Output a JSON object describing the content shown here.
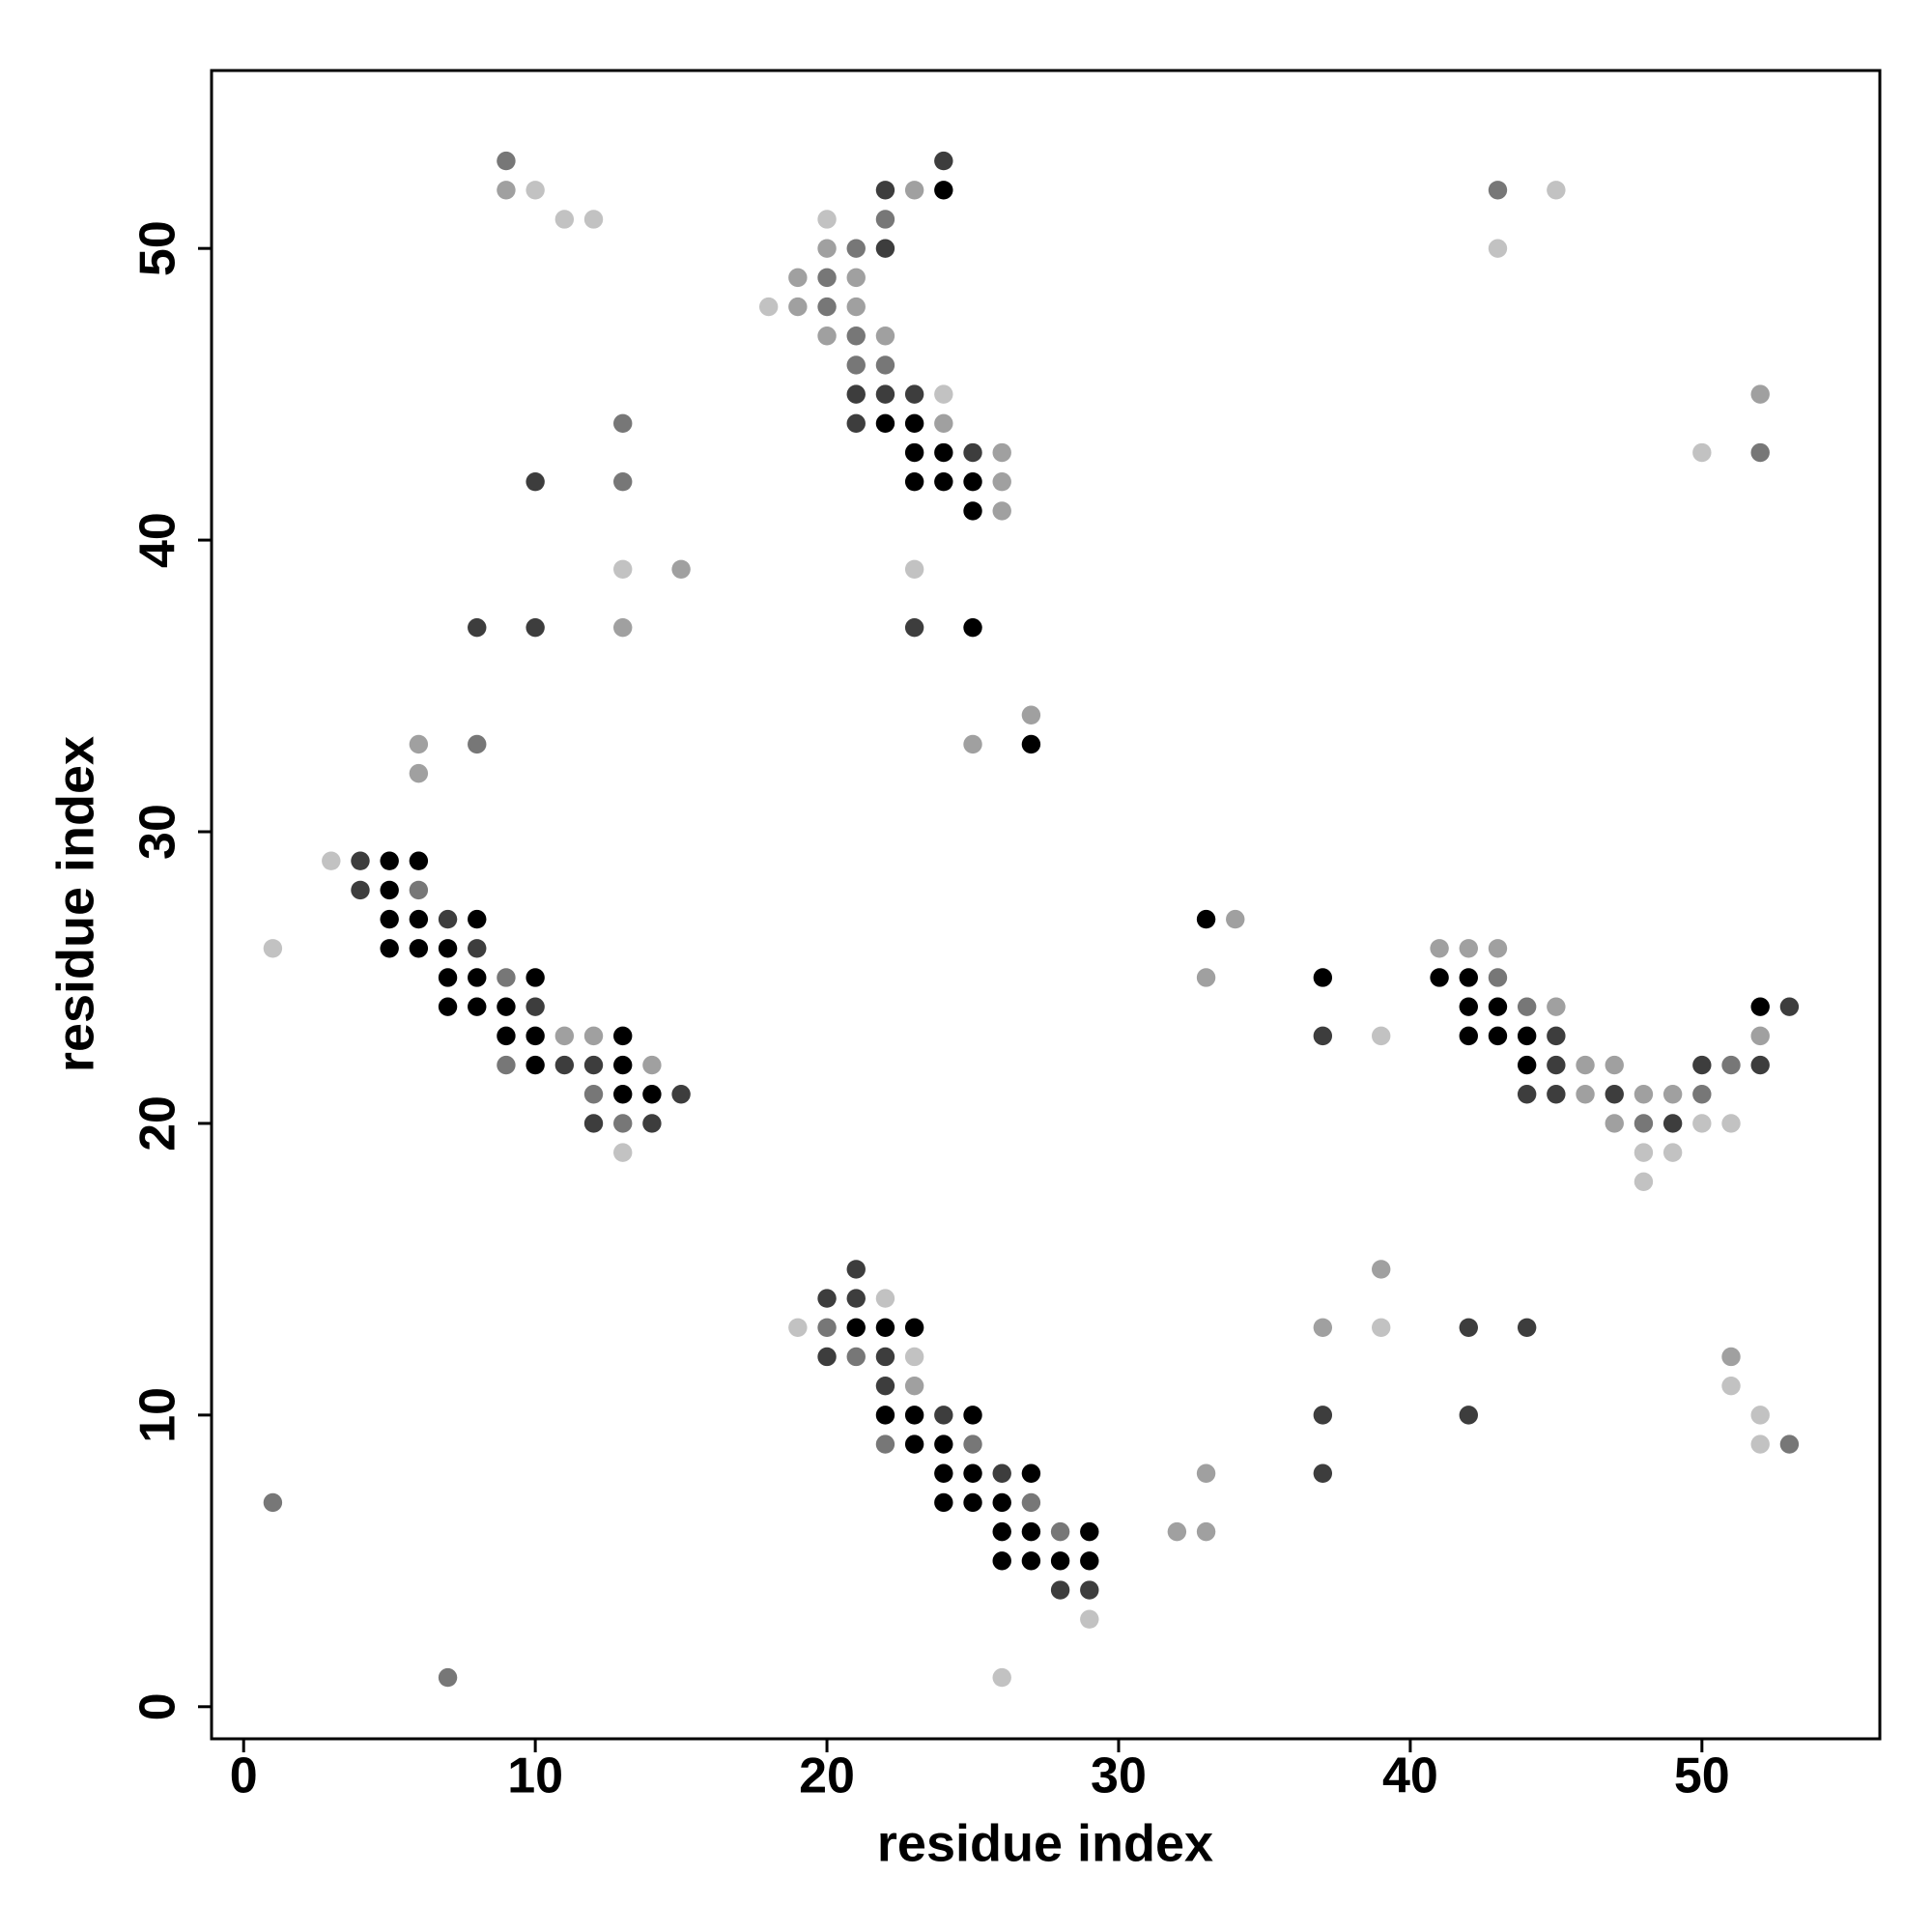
{
  "chart_data": {
    "type": "scatter",
    "xlabel": "residue index",
    "ylabel": "residue index",
    "xlim": [
      -1.1,
      56.1
    ],
    "ylim": [
      -1.1,
      56.1
    ],
    "xticks": [
      0,
      10,
      20,
      30,
      40,
      50
    ],
    "yticks": [
      0,
      10,
      20,
      30,
      40,
      50
    ],
    "grid": false,
    "series": [
      {
        "color": "#000000",
        "x": [
          24,
          22,
          23,
          23,
          24,
          23,
          24,
          25,
          25,
          25,
          27,
          5,
          6,
          5,
          5,
          6,
          8,
          33,
          5,
          6,
          7,
          7,
          8,
          10,
          37,
          41,
          42,
          7,
          8,
          9,
          42,
          43,
          52,
          9,
          10,
          13,
          42,
          43,
          44,
          10,
          13,
          44,
          13,
          14,
          21,
          22,
          23,
          22,
          23,
          25,
          23,
          24,
          24,
          25,
          27,
          24,
          25,
          26,
          26,
          27,
          29,
          26,
          27,
          28,
          29
        ],
        "values": [
          52,
          44,
          44,
          43,
          43,
          42,
          42,
          42,
          41,
          37,
          33,
          29,
          29,
          28,
          27,
          27,
          27,
          27,
          26,
          26,
          26,
          25,
          25,
          25,
          25,
          25,
          25,
          24,
          24,
          24,
          24,
          24,
          24,
          23,
          23,
          23,
          23,
          23,
          23,
          22,
          22,
          22,
          21,
          21,
          13,
          13,
          13,
          10,
          10,
          10,
          9,
          9,
          8,
          8,
          8,
          7,
          7,
          7,
          6,
          6,
          6,
          5,
          5,
          5,
          5
        ]
      },
      {
        "color": "#3d3d3d",
        "x": [
          24,
          22,
          22,
          21,
          22,
          23,
          21,
          25,
          10,
          8,
          10,
          23,
          4,
          4,
          7,
          8,
          10,
          53,
          37,
          45,
          11,
          12,
          45,
          50,
          52,
          15,
          44,
          45,
          47,
          12,
          14,
          49,
          21,
          20,
          21,
          42,
          44,
          20,
          22,
          22,
          24,
          37,
          42,
          26,
          37,
          28,
          29
        ],
        "values": [
          53,
          52,
          50,
          45,
          45,
          45,
          44,
          43,
          42,
          37,
          37,
          37,
          29,
          28,
          27,
          26,
          24,
          24,
          23,
          23,
          22,
          22,
          22,
          22,
          22,
          21,
          21,
          21,
          21,
          20,
          20,
          20,
          15,
          14,
          14,
          13,
          13,
          12,
          12,
          11,
          10,
          10,
          10,
          8,
          8,
          4,
          4
        ]
      },
      {
        "color": "#777777",
        "x": [
          9,
          43,
          22,
          21,
          20,
          20,
          21,
          21,
          22,
          13,
          52,
          13,
          8,
          6,
          9,
          43,
          44,
          9,
          51,
          12,
          50,
          13,
          48,
          20,
          21,
          22,
          25,
          53,
          1,
          27,
          28,
          7
        ],
        "values": [
          53,
          52,
          51,
          50,
          49,
          48,
          47,
          46,
          46,
          44,
          43,
          42,
          33,
          28,
          25,
          25,
          24,
          22,
          22,
          21,
          21,
          20,
          20,
          13,
          12,
          9,
          9,
          9,
          7,
          7,
          6,
          1
        ]
      },
      {
        "color": "#a0a0a0",
        "x": [
          9,
          23,
          20,
          19,
          21,
          19,
          21,
          20,
          22,
          52,
          24,
          26,
          26,
          26,
          15,
          13,
          27,
          6,
          25,
          6,
          34,
          41,
          42,
          43,
          33,
          45,
          11,
          12,
          52,
          14,
          46,
          47,
          46,
          48,
          49,
          47,
          39,
          37,
          51,
          23,
          33,
          32,
          33
        ],
        "values": [
          52,
          52,
          50,
          49,
          49,
          48,
          48,
          47,
          47,
          45,
          44,
          43,
          42,
          41,
          39,
          37,
          34,
          33,
          33,
          32,
          27,
          26,
          26,
          26,
          25,
          24,
          23,
          23,
          23,
          22,
          22,
          22,
          21,
          21,
          21,
          20,
          15,
          13,
          12,
          11,
          8,
          6,
          6
        ]
      },
      {
        "color": "#c2c2c2",
        "x": [
          10,
          45,
          11,
          12,
          20,
          43,
          18,
          24,
          50,
          13,
          23,
          3,
          1,
          39,
          50,
          51,
          13,
          48,
          49,
          48,
          22,
          19,
          39,
          23,
          51,
          52,
          52,
          29,
          26
        ],
        "values": [
          52,
          52,
          51,
          51,
          51,
          50,
          48,
          45,
          43,
          39,
          39,
          29,
          26,
          23,
          20,
          20,
          19,
          19,
          19,
          18,
          14,
          13,
          13,
          12,
          11,
          10,
          9,
          3,
          1
        ]
      }
    ]
  }
}
